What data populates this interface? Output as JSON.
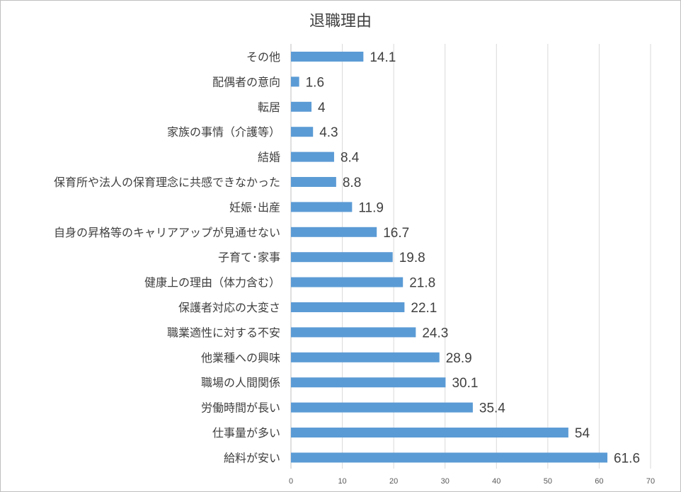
{
  "chart_data": {
    "type": "bar",
    "orientation": "horizontal",
    "title": "退職理由",
    "categories": [
      "その他",
      "配偶者の意向",
      "転居",
      "家族の事情（介護等）",
      "結婚",
      "保育所や法人の保育理念に共感できなかった",
      "妊娠･出産",
      "自身の昇格等のキャリアアップが見通せない",
      "子育て･家事",
      "健康上の理由（体力含む）",
      "保護者対応の大変さ",
      "職業適性に対する不安",
      "他業種への興味",
      "職場の人間関係",
      "労働時間が長い",
      "仕事量が多い",
      "給料が安い"
    ],
    "values": [
      14.1,
      1.6,
      4,
      4.3,
      8.4,
      8.8,
      11.9,
      16.7,
      19.8,
      21.8,
      22.1,
      24.3,
      28.9,
      30.1,
      35.4,
      54,
      61.6
    ],
    "value_labels": [
      "14.1",
      "1.6",
      "4",
      "4.3",
      "8.4",
      "8.8",
      "11.9",
      "16.7",
      "19.8",
      "21.8",
      "22.1",
      "24.3",
      "28.9",
      "30.1",
      "35.4",
      "54",
      "61.6"
    ],
    "xlim": [
      0,
      70
    ],
    "xticks": [
      "0",
      "10",
      "20",
      "30",
      "40",
      "50",
      "60",
      "70"
    ],
    "grid": true,
    "legend": "none",
    "bar_color": "#5b9bd5"
  }
}
